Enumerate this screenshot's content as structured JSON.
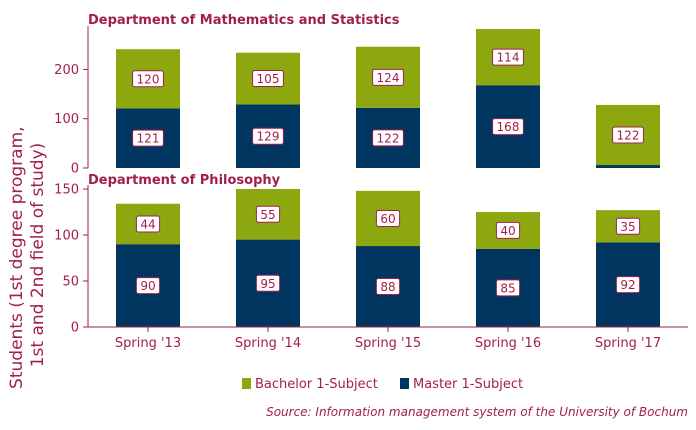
{
  "chart_data": {
    "type": "bar",
    "stacked": true,
    "ylabel": "Students (1st degree program, 1st and 2nd field of study)",
    "source": "Source: Information management system of the University of Bochum",
    "legend_position": "bottom",
    "categories": [
      "Spring '13",
      "Spring '14",
      "Spring '15",
      "Spring '16",
      "Spring '17"
    ],
    "panels": [
      {
        "title": "Department of Mathematics and Statistics",
        "ylim": [
          0,
          280
        ],
        "yticks": [
          "0",
          "100",
          "200"
        ],
        "ytick_values": [
          0,
          100,
          200
        ],
        "series": [
          {
            "name": "Master 1-Subject",
            "color": "#003560",
            "values": [
              121,
              129,
              122,
              168,
              6
            ],
            "labels": [
              "121",
              "129",
              "122",
              "168",
              ""
            ]
          },
          {
            "name": "Bachelor 1-Subject",
            "color": "#8da80f",
            "values": [
              120,
              105,
              124,
              114,
              122
            ],
            "labels": [
              "120",
              "105",
              "124",
              "114",
              "122"
            ]
          }
        ]
      },
      {
        "title": "Department of Philosophy",
        "ylim": [
          0,
          150
        ],
        "yticks": [
          "0",
          "50",
          "100",
          "150"
        ],
        "ytick_values": [
          0,
          50,
          100,
          150
        ],
        "series": [
          {
            "name": "Master 1-Subject",
            "color": "#003560",
            "values": [
              90,
              95,
              88,
              85,
              92
            ],
            "labels": [
              "90",
              "95",
              "88",
              "85",
              "92"
            ]
          },
          {
            "name": "Bachelor 1-Subject",
            "color": "#8da80f",
            "values": [
              44,
              55,
              60,
              40,
              35
            ],
            "labels": [
              "44",
              "55",
              "60",
              "40",
              "35"
            ]
          }
        ]
      }
    ],
    "legend": [
      {
        "name": "Bachelor 1-Subject",
        "color": "#8da80f"
      },
      {
        "name": "Master 1-Subject",
        "color": "#003560"
      }
    ]
  }
}
